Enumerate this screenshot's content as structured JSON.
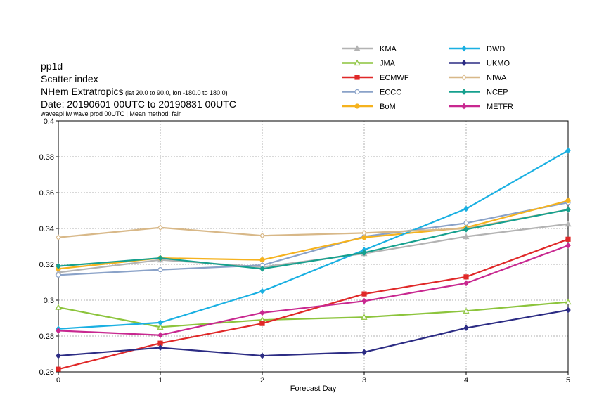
{
  "header": {
    "line1": "pp1d",
    "line2": "Scatter index",
    "line3_main": "NHem Extratropics",
    "line3_sub": " (lat  20.0 to 90.0, lon  -180.0 to  180.0)",
    "line4": "Date: 20190601 00UTC to 20190831 00UTC",
    "line5": "waveapi lw wave prod 00UTC | Mean method: fair"
  },
  "chart_data": {
    "type": "line",
    "xlabel": "Forecast Day",
    "ylabel": "",
    "x": [
      0,
      1,
      2,
      3,
      4,
      5
    ],
    "xlim": [
      0,
      5
    ],
    "ylim": [
      0.26,
      0.4
    ],
    "x_ticks": [
      "0",
      "1",
      "2",
      "3",
      "4",
      "5"
    ],
    "y_ticks": [
      "0.26",
      "0.28",
      "0.3",
      "0.32",
      "0.34",
      "0.36",
      "0.38",
      "0.4"
    ],
    "grid": true,
    "legend_placement": "top-right",
    "series": [
      {
        "name": "KMA",
        "color": "#b3b3b3",
        "marker": "triangle",
        "values": [
          0.3155,
          0.3225,
          0.3185,
          0.326,
          0.3355,
          0.3425
        ]
      },
      {
        "name": "JMA",
        "color": "#8cc43c",
        "marker": "triangle-open",
        "values": [
          0.296,
          0.285,
          0.289,
          0.2905,
          0.294,
          0.299
        ]
      },
      {
        "name": "ECMWF",
        "color": "#e02828",
        "marker": "square",
        "values": [
          0.2615,
          0.276,
          0.287,
          0.3035,
          0.313,
          0.334
        ]
      },
      {
        "name": "ECCC",
        "color": "#8aa2c8",
        "marker": "circle-open",
        "values": [
          0.314,
          0.317,
          0.3195,
          0.3355,
          0.343,
          0.3545
        ]
      },
      {
        "name": "BoM",
        "color": "#f5b21e",
        "marker": "circle",
        "values": [
          0.3175,
          0.3235,
          0.3225,
          0.335,
          0.3405,
          0.3555
        ]
      },
      {
        "name": "DWD",
        "color": "#1ab0e2",
        "marker": "diamond",
        "values": [
          0.284,
          0.2875,
          0.305,
          0.328,
          0.351,
          0.3835
        ]
      },
      {
        "name": "UKMO",
        "color": "#2c2c84",
        "marker": "diamond",
        "values": [
          0.269,
          0.2735,
          0.269,
          0.271,
          0.2845,
          0.2945
        ]
      },
      {
        "name": "NIWA",
        "color": "#d8b888",
        "marker": "diamond-open",
        "values": [
          0.335,
          0.3405,
          0.336,
          0.3375,
          0.34,
          0.3505
        ]
      },
      {
        "name": "NCEP",
        "color": "#16a08e",
        "marker": "diamond",
        "values": [
          0.319,
          0.3235,
          0.3175,
          0.3265,
          0.3395,
          0.3505
        ]
      },
      {
        "name": "METFR",
        "color": "#c82890",
        "marker": "diamond",
        "values": [
          0.283,
          0.2805,
          0.293,
          0.2995,
          0.3095,
          0.3305
        ]
      }
    ]
  }
}
